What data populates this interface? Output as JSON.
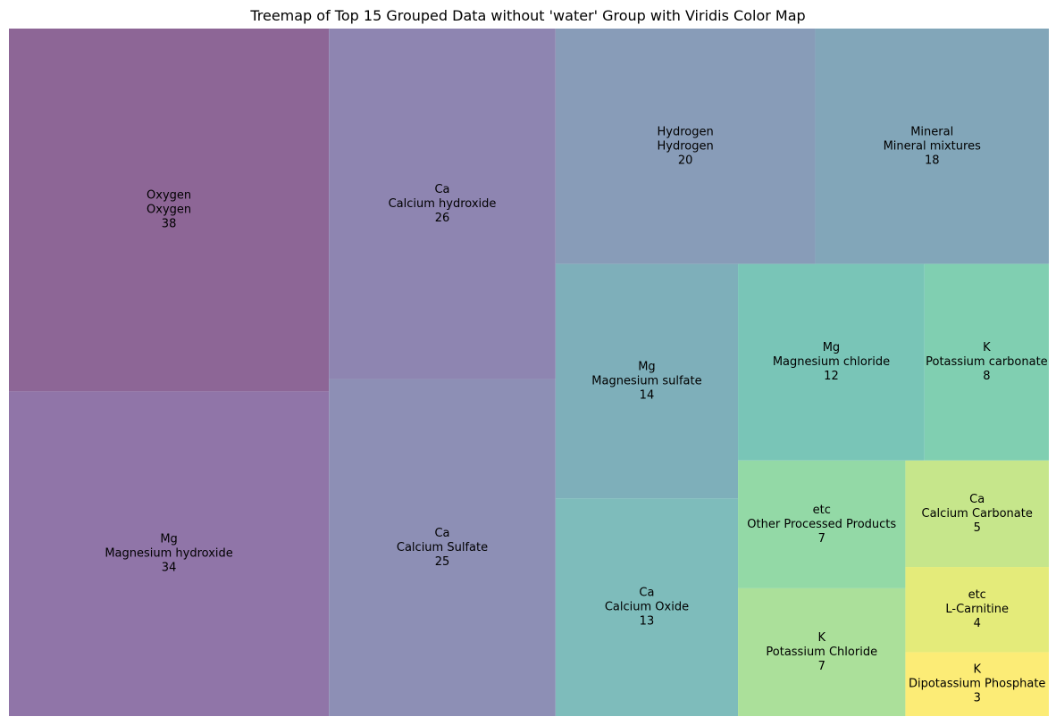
{
  "chart_data": {
    "type": "treemap",
    "title": "Treemap of Top 15 Grouped Data without 'water' Group with Viridis Color Map",
    "items": [
      {
        "group": "Oxygen",
        "label": "Oxygen",
        "value": 38,
        "color": "#8d6696"
      },
      {
        "group": "Mg",
        "label": "Magnesium hydroxide",
        "value": 34,
        "color": "#9075a8"
      },
      {
        "group": "Ca",
        "label": "Calcium hydroxide",
        "value": 26,
        "color": "#8e85b1"
      },
      {
        "group": "Ca",
        "label": "Calcium Sulfate",
        "value": 25,
        "color": "#8d8fb5"
      },
      {
        "group": "Hydrogen",
        "label": "Hydrogen",
        "value": 20,
        "color": "#889cb8"
      },
      {
        "group": "Mineral",
        "label": "Mineral mixtures",
        "value": 18,
        "color": "#82a6b9"
      },
      {
        "group": "Mg",
        "label": "Magnesium sulfate",
        "value": 14,
        "color": "#7eafba"
      },
      {
        "group": "Ca",
        "label": "Calcium Oxide",
        "value": 13,
        "color": "#7ebcbb"
      },
      {
        "group": "Mg",
        "label": "Magnesium chloride",
        "value": 12,
        "color": "#79c5b7"
      },
      {
        "group": "K",
        "label": "Potassium carbonate",
        "value": 8,
        "color": "#80cfb1"
      },
      {
        "group": "etc",
        "label": "Other Processed Products",
        "value": 7,
        "color": "#93d9a6"
      },
      {
        "group": "K",
        "label": "Potassium Chloride",
        "value": 7,
        "color": "#abe09a"
      },
      {
        "group": "Ca",
        "label": "Calcium Carbonate",
        "value": 5,
        "color": "#c6e68b"
      },
      {
        "group": "etc",
        "label": "L-Carnitine",
        "value": 4,
        "color": "#e4eb7a"
      },
      {
        "group": "K",
        "label": "Dipotassium Phosphate",
        "value": 3,
        "color": "#fcec76"
      }
    ]
  }
}
